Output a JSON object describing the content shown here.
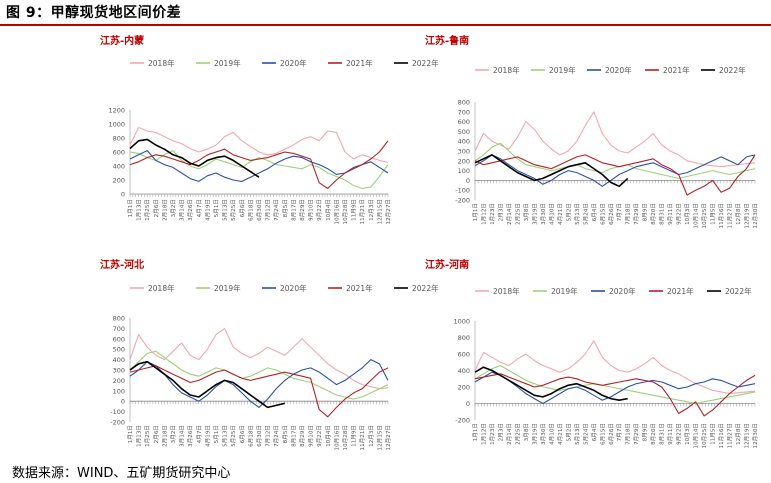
{
  "figure_title": "图 9：甲醇现货地区间价差",
  "source_note": "数据来源：WIND、五矿期货研究中心",
  "colors": {
    "2018年": "#f4a6b0",
    "2019年": "#9dd07a",
    "2020年": "#2a52a4",
    "2021年": "#b22228",
    "2022年": "#000000",
    "accent": "#c00000"
  },
  "chart_data": [
    {
      "type": "line",
      "title": "江苏-内蒙",
      "legend": [
        "2018年",
        "2019年",
        "2020年",
        "2021年",
        "2022年"
      ],
      "ylim": [
        0,
        1200
      ],
      "yticks": [
        0,
        200,
        400,
        600,
        800,
        1000,
        1200
      ],
      "xticks": [
        "1月1日",
        "1月13日",
        "1月25日",
        "2月6日",
        "2月18日",
        "3月2日",
        "3月14日",
        "3月26日",
        "4月7日",
        "4月19日",
        "5月1日",
        "5月13日",
        "5月25日",
        "6月6日",
        "6月18日",
        "6月30日",
        "7月12日",
        "7月24日",
        "8月5日",
        "8月17日",
        "8月29日",
        "9月10日",
        "9月22日",
        "10月4日",
        "10月16日",
        "10月28日",
        "11月9日",
        "11月21日",
        "12月3日",
        "12月15日",
        "12月27日"
      ],
      "series": [
        {
          "name": "2018年",
          "values": [
            700,
            950,
            900,
            880,
            820,
            760,
            720,
            650,
            600,
            640,
            700,
            820,
            880,
            760,
            680,
            600,
            560,
            580,
            640,
            700,
            780,
            820,
            760,
            900,
            880,
            600,
            500,
            560,
            520,
            480,
            450
          ],
          "end": 30
        },
        {
          "name": "2019年",
          "values": [
            600,
            580,
            520,
            480,
            560,
            620,
            480,
            400,
            360,
            420,
            500,
            460,
            420,
            380,
            460,
            520,
            480,
            420,
            400,
            380,
            360,
            420,
            380,
            300,
            250,
            200,
            120,
            80,
            100,
            250,
            420
          ],
          "end": 30
        },
        {
          "name": "2020年",
          "values": [
            500,
            560,
            620,
            480,
            420,
            380,
            300,
            220,
            180,
            260,
            300,
            240,
            200,
            180,
            240,
            300,
            360,
            440,
            500,
            540,
            520,
            460,
            420,
            360,
            280,
            300,
            380,
            420,
            460,
            380,
            300
          ],
          "end": 30
        },
        {
          "name": "2021年",
          "values": [
            420,
            460,
            520,
            560,
            540,
            500,
            460,
            420,
            480,
            560,
            600,
            640,
            560,
            520,
            480,
            500,
            520,
            560,
            600,
            580,
            540,
            500,
            160,
            80,
            200,
            300,
            360,
            420,
            500,
            600,
            760
          ],
          "end": 30
        },
        {
          "name": "2022年",
          "values": [
            650,
            760,
            780,
            700,
            640,
            560,
            520,
            440,
            400,
            480,
            520,
            540,
            480,
            400,
            320,
            240
          ],
          "end": 15
        }
      ]
    },
    {
      "type": "line",
      "title": "江苏-鲁南",
      "legend": [
        "2018年",
        "2019年",
        "2020年",
        "2021年",
        "2022年"
      ],
      "ylim": [
        -200,
        800
      ],
      "yticks": [
        -200,
        -100,
        0,
        100,
        200,
        300,
        400,
        500,
        600,
        700,
        800
      ],
      "xticks": [
        "1月1日",
        "1月12日",
        "1月23日",
        "2月3日",
        "2月14日",
        "2月25日",
        "3月8日",
        "3月19日",
        "3月30日",
        "4月10日",
        "4月21日",
        "5月2日",
        "5月13日",
        "5月24日",
        "6月4日",
        "6月15日",
        "6月26日",
        "7月7日",
        "7月18日",
        "7月29日",
        "8月9日",
        "8月20日",
        "8月31日",
        "9月11日",
        "9月22日",
        "10月3日",
        "10月14日",
        "10月25日",
        "11月5日",
        "11月16日",
        "11月27日",
        "12月8日",
        "12月19日",
        "12月30日"
      ],
      "series": [
        {
          "name": "2018年",
          "values": [
            300,
            480,
            400,
            360,
            320,
            440,
            600,
            520,
            400,
            320,
            260,
            300,
            400,
            560,
            700,
            480,
            360,
            300,
            280,
            340,
            400,
            480,
            360,
            300,
            260,
            200,
            180,
            160,
            150,
            140,
            150,
            160,
            170,
            180
          ],
          "end": 33
        },
        {
          "name": "2019年",
          "values": [
            200,
            260,
            340,
            380,
            300,
            220,
            160,
            140,
            120,
            100,
            120,
            140,
            160,
            120,
            100,
            80,
            120,
            140,
            160,
            120,
            100,
            80,
            60,
            40,
            20,
            40,
            60,
            80,
            100,
            80,
            60,
            80,
            100,
            120
          ],
          "end": 33
        },
        {
          "name": "2020年",
          "values": [
            150,
            200,
            260,
            220,
            160,
            100,
            60,
            20,
            -40,
            0,
            60,
            100,
            80,
            40,
            0,
            -60,
            0,
            60,
            100,
            140,
            160,
            180,
            140,
            100,
            60,
            80,
            120,
            160,
            200,
            240,
            200,
            160,
            240,
            260
          ],
          "end": 33
        },
        {
          "name": "2021年",
          "values": [
            200,
            160,
            180,
            200,
            220,
            240,
            200,
            160,
            140,
            120,
            160,
            200,
            240,
            260,
            220,
            180,
            160,
            140,
            160,
            180,
            200,
            220,
            160,
            120,
            60,
            -150,
            -100,
            -60,
            0,
            -120,
            -80,
            40,
            120,
            260
          ],
          "end": 33
        },
        {
          "name": "2022年",
          "values": [
            180,
            220,
            260,
            200,
            140,
            80,
            40,
            0,
            20,
            60,
            100,
            140,
            160,
            180,
            120,
            60,
            -20,
            -60,
            20
          ],
          "end": 18
        }
      ]
    },
    {
      "type": "line",
      "title": "江苏-河北",
      "legend": [
        "2018年",
        "2019年",
        "2020年",
        "2021年",
        "2022年"
      ],
      "ylim": [
        -200,
        800
      ],
      "yticks": [
        -200,
        -100,
        0,
        100,
        200,
        300,
        400,
        500,
        600,
        700,
        800
      ],
      "xticks": [
        "1月1日",
        "1月13日",
        "1月25日",
        "2月6日",
        "2月18日",
        "3月2日",
        "3月14日",
        "3月26日",
        "4月7日",
        "4月19日",
        "5月1日",
        "5月13日",
        "5月25日",
        "6月6日",
        "6月18日",
        "6月30日",
        "7月12日",
        "7月24日",
        "8月5日",
        "8月17日",
        "8月29日",
        "9月10日",
        "9月22日",
        "10月4日",
        "10月16日",
        "10月28日",
        "11月9日",
        "11月21日",
        "12月3日",
        "12月15日",
        "12月27日"
      ],
      "series": [
        {
          "name": "2018年",
          "values": [
            400,
            640,
            520,
            440,
            400,
            480,
            560,
            440,
            400,
            500,
            640,
            700,
            520,
            460,
            420,
            460,
            520,
            480,
            440,
            520,
            600,
            520,
            440,
            360,
            300,
            260,
            200,
            160,
            140,
            120,
            130
          ],
          "end": 30
        },
        {
          "name": "2019年",
          "values": [
            300,
            380,
            460,
            480,
            420,
            360,
            300,
            260,
            240,
            280,
            320,
            300,
            260,
            220,
            240,
            280,
            320,
            300,
            260,
            220,
            200,
            180,
            140,
            100,
            60,
            40,
            20,
            40,
            80,
            120,
            160
          ],
          "end": 30
        },
        {
          "name": "2020年",
          "values": [
            240,
            300,
            380,
            340,
            260,
            160,
            80,
            40,
            0,
            60,
            140,
            200,
            160,
            80,
            0,
            -60,
            20,
            120,
            200,
            260,
            300,
            320,
            280,
            220,
            160,
            200,
            260,
            320,
            400,
            360,
            200
          ],
          "end": 30
        },
        {
          "name": "2021年",
          "values": [
            280,
            300,
            320,
            340,
            300,
            260,
            220,
            180,
            200,
            240,
            280,
            300,
            260,
            220,
            200,
            220,
            240,
            260,
            280,
            260,
            240,
            220,
            -80,
            -150,
            -60,
            20,
            80,
            120,
            200,
            280,
            320
          ],
          "end": 30
        },
        {
          "name": "2022年",
          "values": [
            300,
            360,
            380,
            320,
            260,
            200,
            120,
            60,
            40,
            100,
            160,
            200,
            180,
            120,
            60,
            0,
            -60,
            -40,
            -20
          ],
          "end": 18
        }
      ]
    },
    {
      "type": "line",
      "title": "江苏-河南",
      "legend": [
        "2018年",
        "2019年",
        "2020年",
        "2021年",
        "2022年"
      ],
      "ylim": [
        -200,
        1000
      ],
      "yticks": [
        -200,
        0,
        200,
        400,
        600,
        800,
        1000
      ],
      "xticks": [
        "1月1日",
        "1月12日",
        "1月23日",
        "2月3日",
        "2月14日",
        "2月25日",
        "3月8日",
        "3月19日",
        "3月30日",
        "4月10日",
        "4月21日",
        "5月2日",
        "5月13日",
        "5月24日",
        "6月4日",
        "6月15日",
        "6月26日",
        "7月7日",
        "7月18日",
        "7月29日",
        "8月9日",
        "8月20日",
        "8月31日",
        "9月11日",
        "9月22日",
        "10月3日",
        "10月14日",
        "10月25日",
        "11月5日",
        "11月16日",
        "11月27日",
        "12月8日",
        "12月19日",
        "12月30日"
      ],
      "series": [
        {
          "name": "2018年",
          "values": [
            400,
            620,
            560,
            500,
            460,
            540,
            600,
            520,
            460,
            420,
            380,
            420,
            500,
            600,
            760,
            560,
            460,
            400,
            380,
            420,
            480,
            560,
            460,
            400,
            360,
            300,
            240,
            200,
            160,
            140,
            120,
            130,
            140,
            150
          ],
          "end": 33
        },
        {
          "name": "2019年",
          "values": [
            300,
            360,
            420,
            460,
            400,
            340,
            280,
            240,
            200,
            180,
            160,
            180,
            200,
            220,
            240,
            220,
            200,
            180,
            160,
            140,
            120,
            100,
            80,
            60,
            40,
            20,
            0,
            20,
            40,
            60,
            80,
            100,
            120,
            140
          ],
          "end": 33
        },
        {
          "name": "2020年",
          "values": [
            260,
            320,
            380,
            340,
            280,
            200,
            120,
            60,
            0,
            60,
            120,
            180,
            200,
            160,
            100,
            40,
            80,
            140,
            200,
            240,
            260,
            280,
            260,
            220,
            180,
            200,
            240,
            260,
            300,
            280,
            240,
            200,
            220,
            240
          ],
          "end": 33
        },
        {
          "name": "2021年",
          "values": [
            300,
            320,
            340,
            360,
            320,
            280,
            240,
            200,
            220,
            260,
            300,
            320,
            300,
            260,
            240,
            220,
            240,
            260,
            280,
            300,
            280,
            260,
            200,
            60,
            -120,
            -60,
            20,
            -150,
            -80,
            20,
            120,
            200,
            280,
            340
          ],
          "end": 33
        },
        {
          "name": "2022年",
          "values": [
            380,
            440,
            400,
            340,
            280,
            220,
            160,
            100,
            80,
            120,
            180,
            220,
            240,
            200,
            160,
            100,
            60,
            40,
            60
          ],
          "end": 18
        }
      ]
    }
  ]
}
